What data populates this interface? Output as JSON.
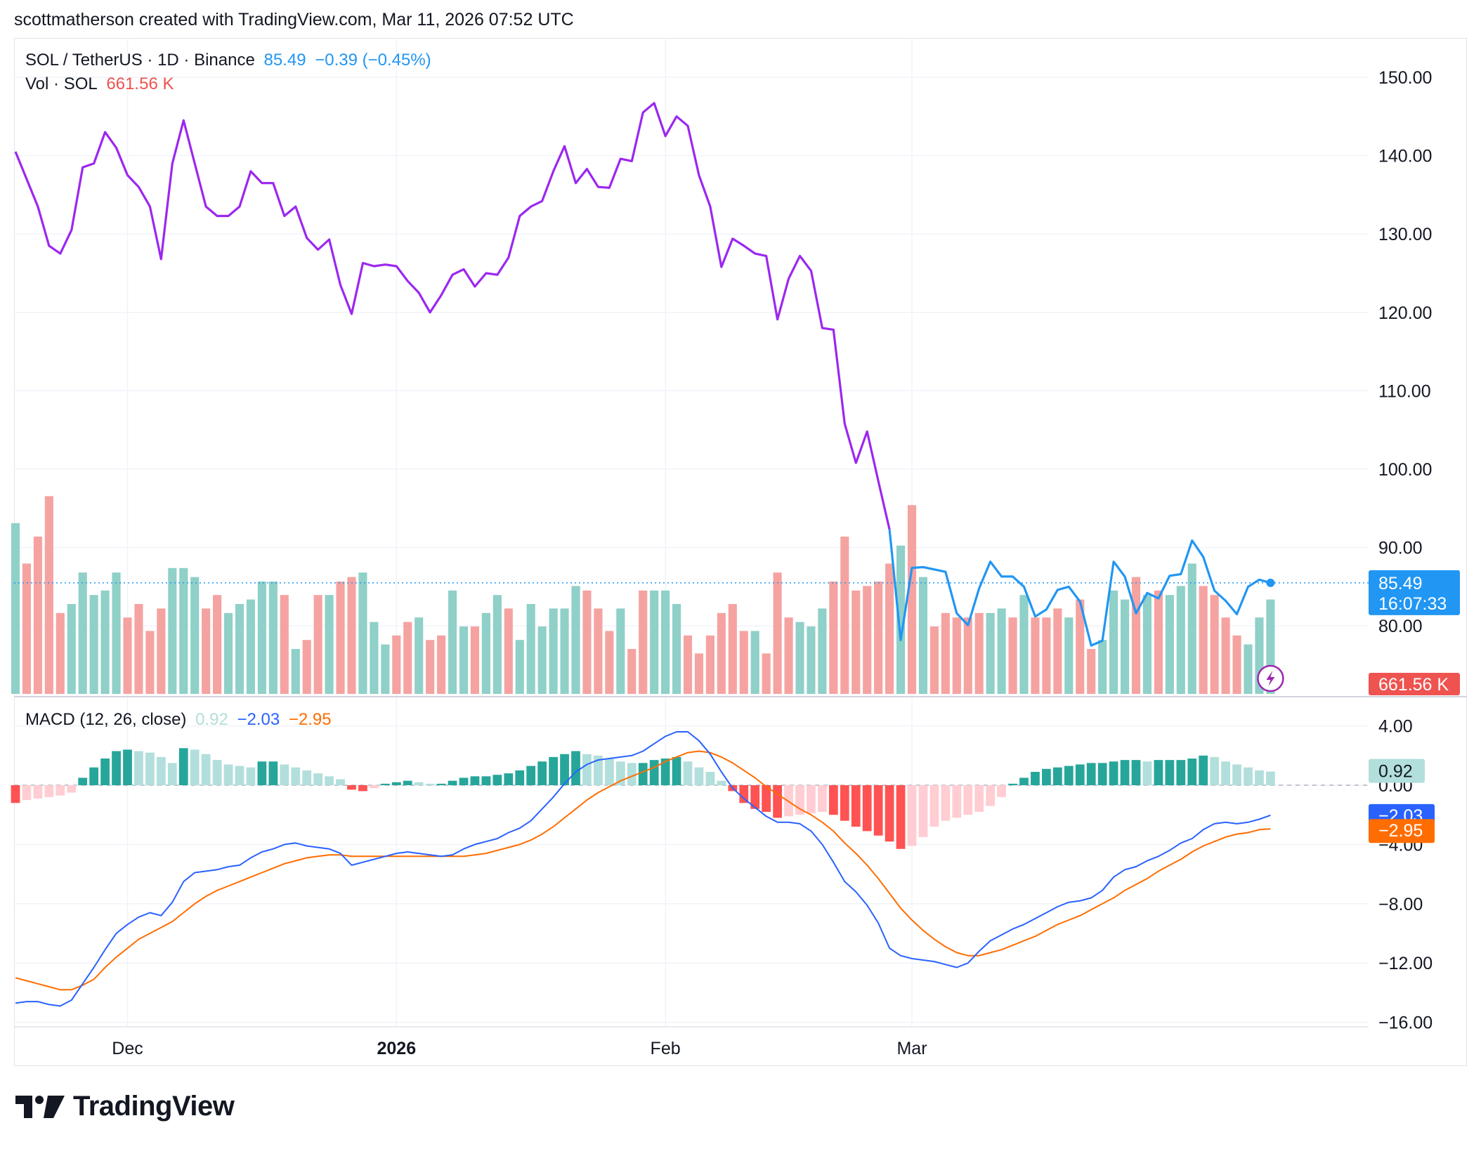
{
  "header": {
    "credit": "scottmatherson created with TradingView.com, Mar 11, 2026 07:52 UTC"
  },
  "legend": {
    "symbol": "SOL / TetherUS · 1D · Binance",
    "price": "85.49",
    "change": "−0.39 (−0.45%)",
    "vol_label": "Vol · SOL",
    "vol_value": "661.56 K",
    "macd_label": "MACD (12, 26, close)",
    "macd_hist": "0.92",
    "macd_line": "−2.03",
    "macd_signal": "−2.95"
  },
  "logo": {
    "text": "TradingView"
  },
  "colors": {
    "purple": "#9c27f0",
    "blue": "#2196f3",
    "up_vol": "#8fd0c8",
    "down_vol": "#f5a3a1",
    "hist_up_strong": "#26a69a",
    "hist_up_weak": "#b2dfdb",
    "hist_down_strong": "#ff5252",
    "hist_down_weak": "#ffcdd2",
    "macd_line": "#2962ff",
    "signal_line": "#ff6d00",
    "grid": "#f0f3fa",
    "axis_text": "#131722"
  },
  "chart_data": {
    "type": "line",
    "title": "SOL / TetherUS · 1D · Binance",
    "x_labels": [
      "Dec",
      "2026",
      "Feb",
      "Mar"
    ],
    "price_axis": {
      "ticks": [
        "150.00",
        "140.00",
        "130.00",
        "120.00",
        "110.00",
        "100.00",
        "90.00",
        "80.00"
      ],
      "ylim": [
        71,
        157
      ],
      "last_price_label": "85.49",
      "countdown_label": "16:07:33",
      "volume_label": "661.56 K"
    },
    "macd_axis": {
      "ticks": [
        "4.00",
        "0.00",
        "−4.00",
        "−8.00",
        "−12.00",
        "−16.00"
      ],
      "ylim": [
        -16,
        6
      ]
    },
    "price": [
      140.5,
      137,
      133.5,
      128.5,
      127.5,
      130.5,
      138.5,
      139,
      143,
      141,
      137.5,
      136,
      133.5,
      126.8,
      139,
      144.5,
      139,
      133.5,
      132.3,
      132.3,
      133.5,
      138,
      136.5,
      136.5,
      132.3,
      133.5,
      129.5,
      128,
      129.3,
      123.5,
      119.8,
      126.3,
      125.9,
      126.1,
      125.9,
      124,
      122.5,
      120,
      122.2,
      124.8,
      125.5,
      123.3,
      125,
      124.8,
      127,
      132.3,
      133.5,
      134.2,
      138,
      141.2,
      136.5,
      138.3,
      136,
      135.9,
      139.6,
      139.3,
      145.5,
      146.7,
      142.5,
      145,
      143.8,
      137.5,
      133.5,
      125.8,
      129.4,
      128.5,
      127.5,
      127.2,
      119.1,
      124.3,
      127.2,
      125.3,
      118,
      117.8,
      105.8,
      100.8,
      104.8,
      98.5,
      92.3,
      78.2,
      87.4,
      87.5,
      87.2,
      86.9,
      81.6,
      80.1,
      84.8,
      88.2,
      86.3,
      86.3,
      85,
      81.2,
      82.1,
      84.6,
      85,
      83.1,
      77.5,
      78.1,
      88.2,
      86.3,
      81.6,
      84.2,
      83.5,
      86.4,
      86.6,
      90.9,
      88.8,
      84.5,
      83.2,
      81.5,
      85,
      85.9,
      85.49
    ],
    "volume_up": [
      true,
      false,
      false,
      false,
      false,
      true,
      true,
      true,
      true,
      true,
      false,
      false,
      false,
      false,
      true,
      true,
      true,
      false,
      false,
      true,
      true,
      true,
      true,
      true,
      false,
      true,
      false,
      false,
      true,
      false,
      false,
      true,
      true,
      true,
      false,
      false,
      true,
      false,
      false,
      true,
      true,
      false,
      true,
      true,
      false,
      true,
      true,
      true,
      true,
      true,
      true,
      false,
      false,
      false,
      true,
      false,
      false,
      true,
      true,
      true,
      false,
      false,
      false,
      false,
      false,
      false,
      true,
      false,
      false,
      false,
      true,
      true,
      true,
      false,
      false,
      false,
      false,
      false,
      false,
      true,
      false,
      true,
      false,
      false,
      false,
      false,
      false,
      true,
      true,
      false,
      true,
      false,
      false,
      false,
      true,
      false,
      false,
      true,
      true,
      true,
      false,
      true,
      false,
      true,
      true,
      true,
      false,
      false,
      false,
      false,
      true,
      true,
      true
    ],
    "volume": [
      38,
      29,
      35,
      44,
      18,
      20,
      27,
      22,
      23,
      27,
      17,
      20,
      14,
      19,
      28,
      28,
      26,
      19,
      22,
      18,
      20,
      21,
      25,
      25,
      22,
      10,
      12,
      22,
      22,
      25,
      26,
      27,
      16,
      11,
      13,
      16,
      17,
      12,
      13,
      23,
      15,
      15,
      18,
      22,
      19,
      12,
      20,
      15,
      19,
      19,
      24,
      23,
      19,
      14,
      19,
      10,
      23,
      23,
      23,
      20,
      13,
      9,
      13,
      18,
      20,
      14,
      14,
      9,
      27,
      17,
      16,
      15,
      19,
      25,
      35,
      23,
      24,
      25,
      29,
      33,
      42,
      26,
      15,
      18,
      17,
      17,
      18,
      18,
      19,
      17,
      22,
      17,
      17,
      19,
      17,
      21,
      10,
      12,
      23,
      21,
      26,
      22,
      23,
      22,
      24,
      29,
      24,
      22,
      17,
      13,
      11,
      17,
      21
    ],
    "macd_hist": [
      -1.2,
      -1.0,
      -0.9,
      -0.8,
      -0.7,
      -0.5,
      0.5,
      1.2,
      1.8,
      2.3,
      2.4,
      2.3,
      2.2,
      1.9,
      1.5,
      2.5,
      2.4,
      2.1,
      1.7,
      1.4,
      1.3,
      1.2,
      1.6,
      1.6,
      1.4,
      1.2,
      1.0,
      0.8,
      0.6,
      0.4,
      -0.3,
      -0.4,
      -0.2,
      0.1,
      0.2,
      0.3,
      0.2,
      0.1,
      0.1,
      0.3,
      0.5,
      0.6,
      0.6,
      0.7,
      0.8,
      1.0,
      1.3,
      1.6,
      1.9,
      2.1,
      2.3,
      2.1,
      2.0,
      1.8,
      1.6,
      1.5,
      1.5,
      1.7,
      1.8,
      1.9,
      1.6,
      1.2,
      0.9,
      0.3,
      -0.4,
      -1.2,
      -1.6,
      -1.8,
      -2.2,
      -2.1,
      -2.0,
      -1.9,
      -1.8,
      -2.0,
      -2.4,
      -2.8,
      -3.1,
      -3.4,
      -3.8,
      -4.3,
      -4.1,
      -3.5,
      -2.8,
      -2.4,
      -2.2,
      -2.0,
      -1.8,
      -1.4,
      -0.8,
      0.1,
      0.5,
      0.9,
      1.1,
      1.2,
      1.3,
      1.4,
      1.5,
      1.5,
      1.6,
      1.7,
      1.7,
      1.6,
      1.7,
      1.7,
      1.7,
      1.8,
      2.0,
      1.9,
      1.6,
      1.4,
      1.2,
      1.0,
      0.92
    ],
    "macd_line": [
      -14.7,
      -14.6,
      -14.6,
      -14.8,
      -14.9,
      -14.5,
      -13.4,
      -12.3,
      -11.1,
      -10.0,
      -9.4,
      -8.9,
      -8.6,
      -8.8,
      -7.9,
      -6.5,
      -5.9,
      -5.8,
      -5.7,
      -5.5,
      -5.4,
      -4.9,
      -4.5,
      -4.3,
      -4.0,
      -3.9,
      -4.1,
      -4.2,
      -4.3,
      -4.6,
      -5.4,
      -5.2,
      -5.0,
      -4.8,
      -4.6,
      -4.5,
      -4.6,
      -4.7,
      -4.8,
      -4.7,
      -4.3,
      -4.0,
      -3.8,
      -3.6,
      -3.2,
      -2.9,
      -2.4,
      -1.6,
      -0.8,
      0.1,
      0.9,
      1.4,
      1.7,
      1.8,
      1.9,
      2.0,
      2.3,
      2.8,
      3.3,
      3.6,
      3.6,
      3.0,
      2.1,
      0.9,
      -0.2,
      -0.9,
      -1.5,
      -2.1,
      -2.5,
      -2.5,
      -2.6,
      -3.1,
      -4.0,
      -5.2,
      -6.5,
      -7.2,
      -8.1,
      -9.3,
      -11.0,
      -11.5,
      -11.7,
      -11.8,
      -11.9,
      -12.1,
      -12.3,
      -12.0,
      -11.2,
      -10.5,
      -10.1,
      -9.7,
      -9.4,
      -9.0,
      -8.6,
      -8.2,
      -7.9,
      -7.8,
      -7.6,
      -7.1,
      -6.2,
      -5.7,
      -5.5,
      -5.1,
      -4.8,
      -4.4,
      -3.9,
      -3.6,
      -3.0,
      -2.6,
      -2.5,
      -2.6,
      -2.5,
      -2.3,
      -2.03
    ],
    "macd_signal": [
      -13.0,
      -13.2,
      -13.4,
      -13.6,
      -13.8,
      -13.8,
      -13.5,
      -13.1,
      -12.3,
      -11.6,
      -11.0,
      -10.4,
      -10.0,
      -9.6,
      -9.2,
      -8.6,
      -8.0,
      -7.5,
      -7.1,
      -6.8,
      -6.5,
      -6.2,
      -5.9,
      -5.6,
      -5.3,
      -5.1,
      -4.9,
      -4.8,
      -4.7,
      -4.7,
      -4.8,
      -4.8,
      -4.8,
      -4.8,
      -4.8,
      -4.8,
      -4.8,
      -4.8,
      -4.8,
      -4.8,
      -4.8,
      -4.7,
      -4.6,
      -4.4,
      -4.2,
      -4.0,
      -3.7,
      -3.3,
      -2.8,
      -2.2,
      -1.6,
      -1.0,
      -0.5,
      -0.1,
      0.3,
      0.6,
      0.9,
      1.2,
      1.6,
      1.9,
      2.2,
      2.3,
      2.2,
      1.9,
      1.5,
      1.0,
      0.5,
      -0.1,
      -0.6,
      -1.1,
      -1.6,
      -2.0,
      -2.5,
      -3.1,
      -3.9,
      -4.6,
      -5.4,
      -6.3,
      -7.3,
      -8.3,
      -9.1,
      -9.8,
      -10.4,
      -10.9,
      -11.3,
      -11.5,
      -11.5,
      -11.3,
      -11.1,
      -10.8,
      -10.5,
      -10.2,
      -9.8,
      -9.4,
      -9.1,
      -8.8,
      -8.4,
      -8.0,
      -7.6,
      -7.1,
      -6.7,
      -6.3,
      -5.8,
      -5.4,
      -5.0,
      -4.5,
      -4.1,
      -3.8,
      -3.5,
      -3.3,
      -3.2,
      -3.0,
      -2.95
    ]
  }
}
